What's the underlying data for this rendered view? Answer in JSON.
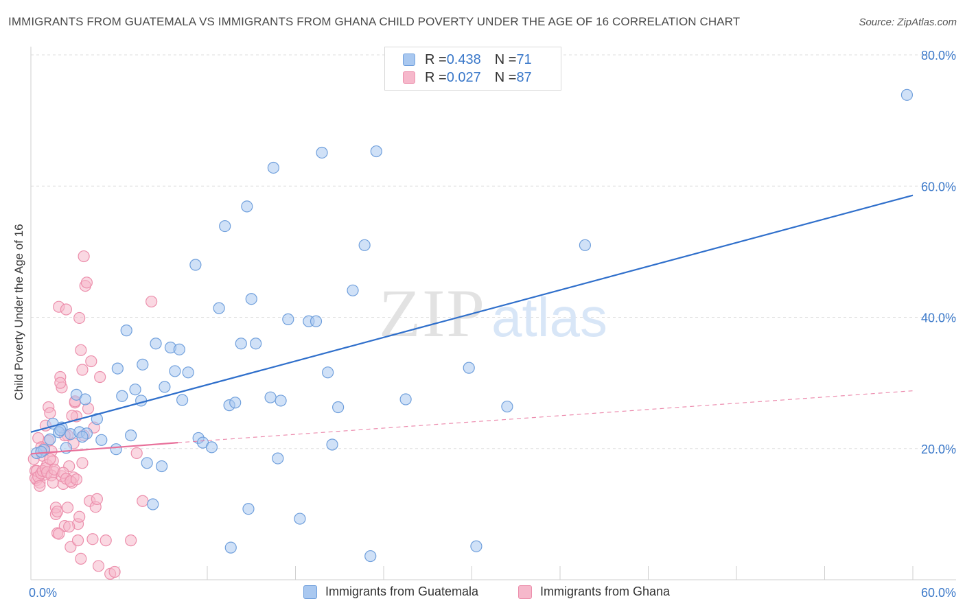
{
  "title": "IMMIGRANTS FROM GUATEMALA VS IMMIGRANTS FROM GHANA CHILD POVERTY UNDER THE AGE OF 16 CORRELATION CHART",
  "source": "Source: ZipAtlas.com",
  "watermark": {
    "zip": "ZIP",
    "atlas": "atlas"
  },
  "legend_top": {
    "rows": [
      {
        "r_label": "R = ",
        "r_value": "0.438",
        "n_label": "N = ",
        "n_value": "71"
      },
      {
        "r_label": "R = ",
        "r_value": "0.027",
        "n_label": "N = ",
        "n_value": "87"
      }
    ]
  },
  "legend_bottom": {
    "guatemala": "Immigrants from Guatemala",
    "ghana": "Immigrants from Ghana"
  },
  "colors": {
    "blue_fill": "#a9c8f0",
    "blue_stroke": "#6f9fdc",
    "blue_line": "#2f6fcb",
    "pink_fill": "#f6b8cb",
    "pink_stroke": "#ec8fac",
    "pink_line": "#e8709a",
    "axis_text": "#3a78c9",
    "grid": "#dedede"
  },
  "chart_data": {
    "type": "scatter",
    "ylabel": "Child Poverty Under the Age of 16",
    "xlabel": "",
    "xlim": [
      0,
      60
    ],
    "ylim": [
      0,
      80
    ],
    "x_tick_labels": [
      {
        "value": 0,
        "label": "0.0%"
      },
      {
        "value": 60,
        "label": "60.0%"
      }
    ],
    "y_tick_labels": [
      {
        "value": 20,
        "label": "20.0%"
      },
      {
        "value": 40,
        "label": "40.0%"
      },
      {
        "value": 60,
        "label": "60.0%"
      },
      {
        "value": 80,
        "label": "80.0%"
      }
    ],
    "series": [
      {
        "name": "Immigrants from Guatemala",
        "color": "blue",
        "trend": {
          "x": [
            0,
            60
          ],
          "y": [
            22.5,
            58.6
          ],
          "style": "solid"
        },
        "points": [
          [
            0.4,
            19.3
          ],
          [
            0.9,
            19.8
          ],
          [
            1.5,
            23.8
          ],
          [
            1.3,
            21.4
          ],
          [
            2.1,
            23.2
          ],
          [
            1.9,
            22.5
          ],
          [
            2.4,
            20.1
          ],
          [
            2.7,
            22.2
          ],
          [
            3.1,
            28.2
          ],
          [
            3.3,
            22.5
          ],
          [
            3.7,
            27.5
          ],
          [
            3.8,
            22.3
          ],
          [
            4.5,
            24.5
          ],
          [
            4.8,
            21.3
          ],
          [
            5.8,
            19.9
          ],
          [
            5.9,
            32.2
          ],
          [
            6.2,
            28.0
          ],
          [
            6.5,
            38.0
          ],
          [
            6.8,
            22.0
          ],
          [
            7.1,
            29.0
          ],
          [
            7.5,
            27.3
          ],
          [
            7.6,
            32.8
          ],
          [
            7.9,
            17.8
          ],
          [
            8.3,
            11.5
          ],
          [
            8.5,
            36.0
          ],
          [
            8.9,
            17.3
          ],
          [
            9.1,
            29.4
          ],
          [
            9.5,
            35.4
          ],
          [
            9.8,
            31.8
          ],
          [
            10.1,
            35.1
          ],
          [
            10.3,
            27.4
          ],
          [
            10.7,
            31.6
          ],
          [
            11.2,
            48.0
          ],
          [
            11.4,
            21.6
          ],
          [
            11.7,
            20.9
          ],
          [
            12.3,
            20.2
          ],
          [
            12.8,
            41.4
          ],
          [
            13.2,
            53.9
          ],
          [
            13.5,
            26.6
          ],
          [
            13.6,
            4.9
          ],
          [
            13.9,
            27.0
          ],
          [
            14.3,
            36.0
          ],
          [
            14.7,
            56.9
          ],
          [
            14.8,
            10.8
          ],
          [
            15.0,
            42.8
          ],
          [
            15.3,
            36.0
          ],
          [
            16.3,
            27.8
          ],
          [
            16.5,
            62.8
          ],
          [
            16.8,
            18.5
          ],
          [
            17.0,
            27.3
          ],
          [
            17.5,
            39.7
          ],
          [
            18.3,
            9.3
          ],
          [
            18.9,
            39.4
          ],
          [
            19.4,
            39.4
          ],
          [
            19.8,
            65.1
          ],
          [
            20.2,
            31.6
          ],
          [
            20.5,
            20.6
          ],
          [
            20.9,
            26.3
          ],
          [
            21.9,
            44.1
          ],
          [
            22.7,
            51.0
          ],
          [
            23.1,
            3.6
          ],
          [
            23.5,
            65.3
          ],
          [
            25.5,
            27.5
          ],
          [
            29.8,
            32.3
          ],
          [
            30.3,
            5.1
          ],
          [
            32.4,
            26.4
          ],
          [
            37.7,
            51.0
          ],
          [
            59.6,
            73.9
          ],
          [
            0.7,
            19.5
          ],
          [
            2.0,
            22.8
          ],
          [
            3.5,
            21.8
          ]
        ]
      },
      {
        "name": "Immigrants from Ghana",
        "color": "pink",
        "trend": {
          "x": [
            0,
            10
          ],
          "y": [
            19.2,
            20.9
          ],
          "style": "solid"
        },
        "trend_extension": {
          "x": [
            10,
            60
          ],
          "y": [
            20.9,
            28.8
          ],
          "style": "dashed"
        },
        "points": [
          [
            0.2,
            18.4
          ],
          [
            0.3,
            16.6
          ],
          [
            0.4,
            15.2
          ],
          [
            0.5,
            21.6
          ],
          [
            0.6,
            14.8
          ],
          [
            0.7,
            20.2
          ],
          [
            0.8,
            18.9
          ],
          [
            0.9,
            16.0
          ],
          [
            1.0,
            23.5
          ],
          [
            1.1,
            17.5
          ],
          [
            1.2,
            26.3
          ],
          [
            1.3,
            25.4
          ],
          [
            1.4,
            19.6
          ],
          [
            1.5,
            18.1
          ],
          [
            1.6,
            16.4
          ],
          [
            1.7,
            10.0
          ],
          [
            1.8,
            7.1
          ],
          [
            1.9,
            41.6
          ],
          [
            2.0,
            30.9
          ],
          [
            2.1,
            29.3
          ],
          [
            2.2,
            14.6
          ],
          [
            2.3,
            8.2
          ],
          [
            2.4,
            41.2
          ],
          [
            2.5,
            22.0
          ],
          [
            2.6,
            17.3
          ],
          [
            2.7,
            5.0
          ],
          [
            2.8,
            14.8
          ],
          [
            2.9,
            15.6
          ],
          [
            3.0,
            27.0
          ],
          [
            3.1,
            24.9
          ],
          [
            3.2,
            8.5
          ],
          [
            3.3,
            39.9
          ],
          [
            3.4,
            35.0
          ],
          [
            3.5,
            32.0
          ],
          [
            3.6,
            49.3
          ],
          [
            3.7,
            44.8
          ],
          [
            3.8,
            45.3
          ],
          [
            3.9,
            26.1
          ],
          [
            4.0,
            12.0
          ],
          [
            4.1,
            33.3
          ],
          [
            4.2,
            6.2
          ],
          [
            4.3,
            23.2
          ],
          [
            4.4,
            11.1
          ],
          [
            4.5,
            12.3
          ],
          [
            4.6,
            2.1
          ],
          [
            4.7,
            30.9
          ],
          [
            5.1,
            6.0
          ],
          [
            5.4,
            0.9
          ],
          [
            5.7,
            1.2
          ],
          [
            6.8,
            6.0
          ],
          [
            7.2,
            19.3
          ],
          [
            7.6,
            12.0
          ],
          [
            8.2,
            42.4
          ],
          [
            0.3,
            15.5
          ],
          [
            0.4,
            16.6
          ],
          [
            0.5,
            15.7
          ],
          [
            0.6,
            14.3
          ],
          [
            0.7,
            16.2
          ],
          [
            0.8,
            16.6
          ],
          [
            0.9,
            20.0
          ],
          [
            1.0,
            17.0
          ],
          [
            1.1,
            16.4
          ],
          [
            1.2,
            21.2
          ],
          [
            1.3,
            18.4
          ],
          [
            1.4,
            15.9
          ],
          [
            1.5,
            14.8
          ],
          [
            1.6,
            16.8
          ],
          [
            1.7,
            11.0
          ],
          [
            1.8,
            10.4
          ],
          [
            1.9,
            7.0
          ],
          [
            2.0,
            30.0
          ],
          [
            2.1,
            15.8
          ],
          [
            2.2,
            16.3
          ],
          [
            2.3,
            22.0
          ],
          [
            2.4,
            15.4
          ],
          [
            2.5,
            11.0
          ],
          [
            2.6,
            8.1
          ],
          [
            2.7,
            15.0
          ],
          [
            2.8,
            25.0
          ],
          [
            2.9,
            20.8
          ],
          [
            3.0,
            27.2
          ],
          [
            3.1,
            15.3
          ],
          [
            3.2,
            6.0
          ],
          [
            3.3,
            9.6
          ],
          [
            3.4,
            3.2
          ],
          [
            3.5,
            17.8
          ],
          [
            3.6,
            22.0
          ]
        ]
      }
    ]
  }
}
